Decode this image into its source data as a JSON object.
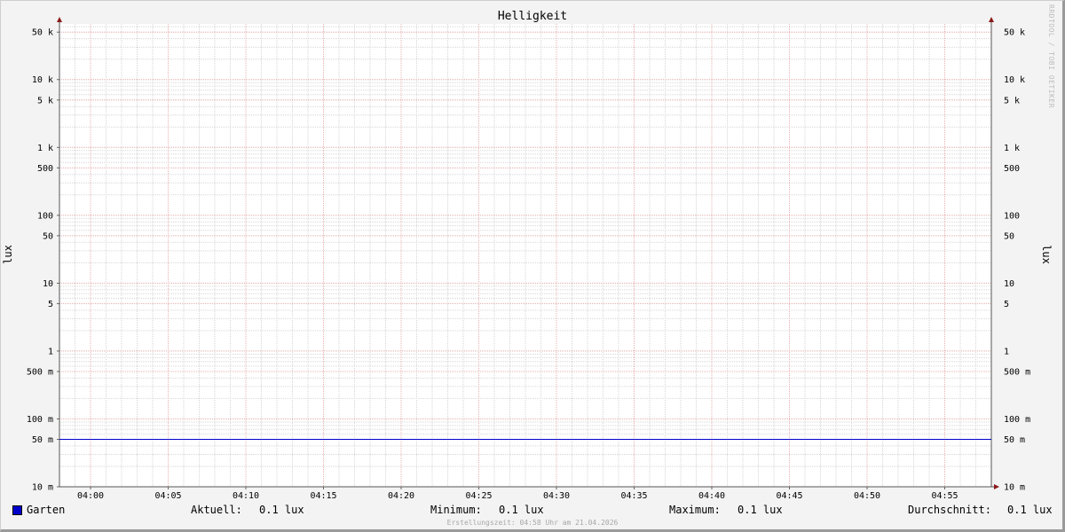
{
  "chart_data": {
    "type": "line",
    "title": "Helligkeit",
    "ylabel": "lux",
    "y_scale": "log",
    "ylim": [
      0.01,
      66000
    ],
    "xlim": [
      "03:58",
      "04:58"
    ],
    "y_ticks": [
      {
        "value": 0.01,
        "label": "10 m"
      },
      {
        "value": 0.05,
        "label": "50 m"
      },
      {
        "value": 0.1,
        "label": "100 m"
      },
      {
        "value": 0.5,
        "label": "500 m"
      },
      {
        "value": 1,
        "label": "1"
      },
      {
        "value": 5,
        "label": "5"
      },
      {
        "value": 10,
        "label": "10"
      },
      {
        "value": 50,
        "label": "50"
      },
      {
        "value": 100,
        "label": "100"
      },
      {
        "value": 500,
        "label": "500"
      },
      {
        "value": 1000,
        "label": "1 k"
      },
      {
        "value": 5000,
        "label": "5 k"
      },
      {
        "value": 10000,
        "label": "10 k"
      },
      {
        "value": 50000,
        "label": "50 k"
      }
    ],
    "x_ticks": [
      "04:00",
      "04:05",
      "04:10",
      "04:15",
      "04:20",
      "04:25",
      "04:30",
      "04:35",
      "04:40",
      "04:45",
      "04:50",
      "04:55"
    ],
    "grid": true,
    "series": [
      {
        "name": "Garten",
        "color": "#0000cc",
        "x": [
          "03:58",
          "04:58"
        ],
        "y": [
          0.05,
          0.05
        ]
      }
    ]
  },
  "legend": {
    "series_name": "Garten",
    "aktuell_label": "Aktuell:",
    "aktuell_value": "0.1 lux",
    "minimum_label": "Minimum:",
    "minimum_value": "0.1 lux",
    "maximum_label": "Maximum:",
    "maximum_value": "0.1 lux",
    "durchschnitt_label": "Durchschnitt:",
    "durchschnitt_value": "0.1 lux"
  },
  "watermark": "RRDTOOL / TOBI OETIKER",
  "footer": "Erstellungszeit: 04:58 Uhr am 21.04.2026"
}
